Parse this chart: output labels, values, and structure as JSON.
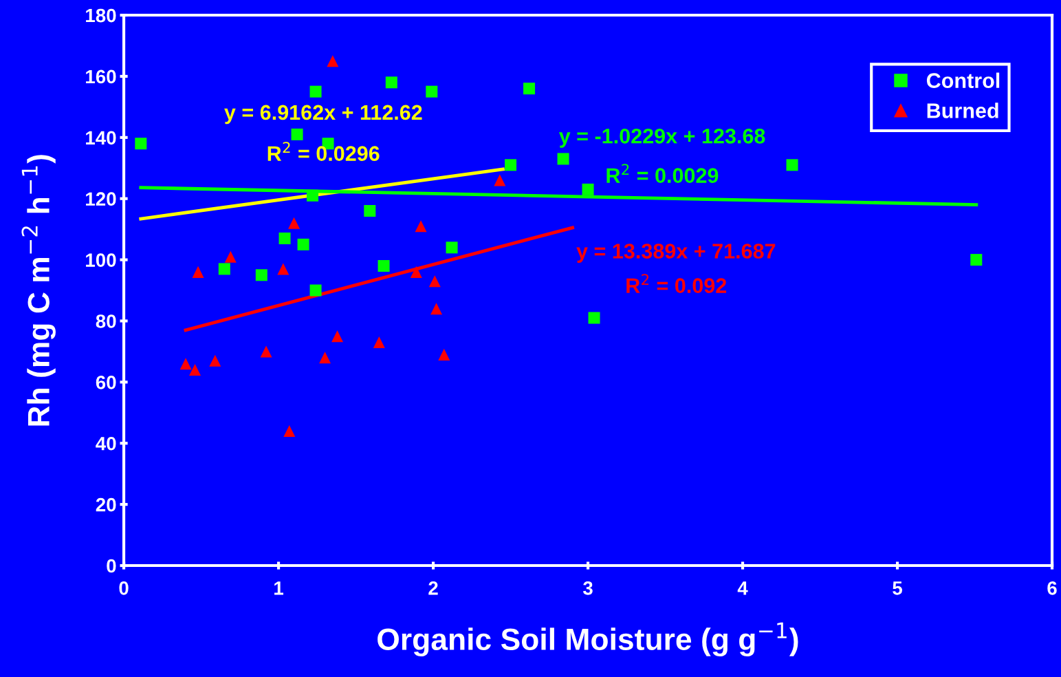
{
  "chart_data": {
    "type": "scatter",
    "xlabel": "Organic Soil Moisture (g g$^{−1}$)",
    "ylabel": "Rh (mg C m$^{−2}$ h$^{−1}$)",
    "xlim": [
      0,
      6
    ],
    "ylim": [
      0,
      180
    ],
    "xticks": [
      0,
      1,
      2,
      3,
      4,
      5,
      6
    ],
    "yticks": [
      0,
      20,
      40,
      60,
      80,
      100,
      120,
      140,
      160,
      180
    ],
    "grid": false,
    "legend": "top right",
    "series": [
      {
        "name": "Control",
        "marker": "square",
        "color": "#00ff00",
        "x": [
          0.11,
          1.24,
          1.73,
          1.99,
          2.62,
          1.12,
          1.32,
          2.5,
          2.84,
          4.32,
          1.22,
          3.0,
          1.59,
          1.04,
          1.16,
          2.12,
          0.65,
          1.68,
          0.89,
          1.24,
          3.04,
          5.51
        ],
        "values": [
          138,
          155,
          158,
          155,
          156,
          141,
          138,
          131,
          133,
          131,
          121,
          123,
          116,
          107,
          105,
          104,
          97,
          98,
          95,
          90,
          81,
          100
        ]
      },
      {
        "name": "Burned",
        "marker": "triangle",
        "color": "#ff0000",
        "x": [
          1.35,
          2.43,
          1.92,
          1.1,
          0.69,
          0.48,
          1.03,
          1.89,
          2.01,
          2.02,
          1.38,
          1.65,
          0.92,
          1.3,
          2.07,
          0.59,
          0.4,
          0.46,
          1.07
        ],
        "values": [
          165,
          126,
          111,
          112,
          101,
          96,
          97,
          96,
          93,
          84,
          75,
          73,
          70,
          68,
          69,
          67,
          66,
          64,
          44
        ]
      },
      {
        "type": "line",
        "marker": "none",
        "color": "#ffff00",
        "x": [
          0.11,
          2.45
        ],
        "values": [
          113.4,
          129.6
        ]
      },
      {
        "type": "line",
        "marker": "none",
        "color": "#00ff00",
        "x": [
          0.11,
          5.51
        ],
        "values": [
          123.6,
          118
        ]
      },
      {
        "type": "line",
        "marker": "none",
        "color": "#ff0000",
        "x": [
          0.4,
          2.9
        ],
        "values": [
          77,
          110.5
        ]
      }
    ],
    "annotations": [
      "y = 6.9162x + 112.62",
      "R$^{2}$ = 0.0296",
      "y = -1.0229x + 123.68",
      "R$^{2}$ = 0.0029",
      "y = 13.389x + 71.687",
      "R$^{2}$ = 0.092"
    ]
  }
}
